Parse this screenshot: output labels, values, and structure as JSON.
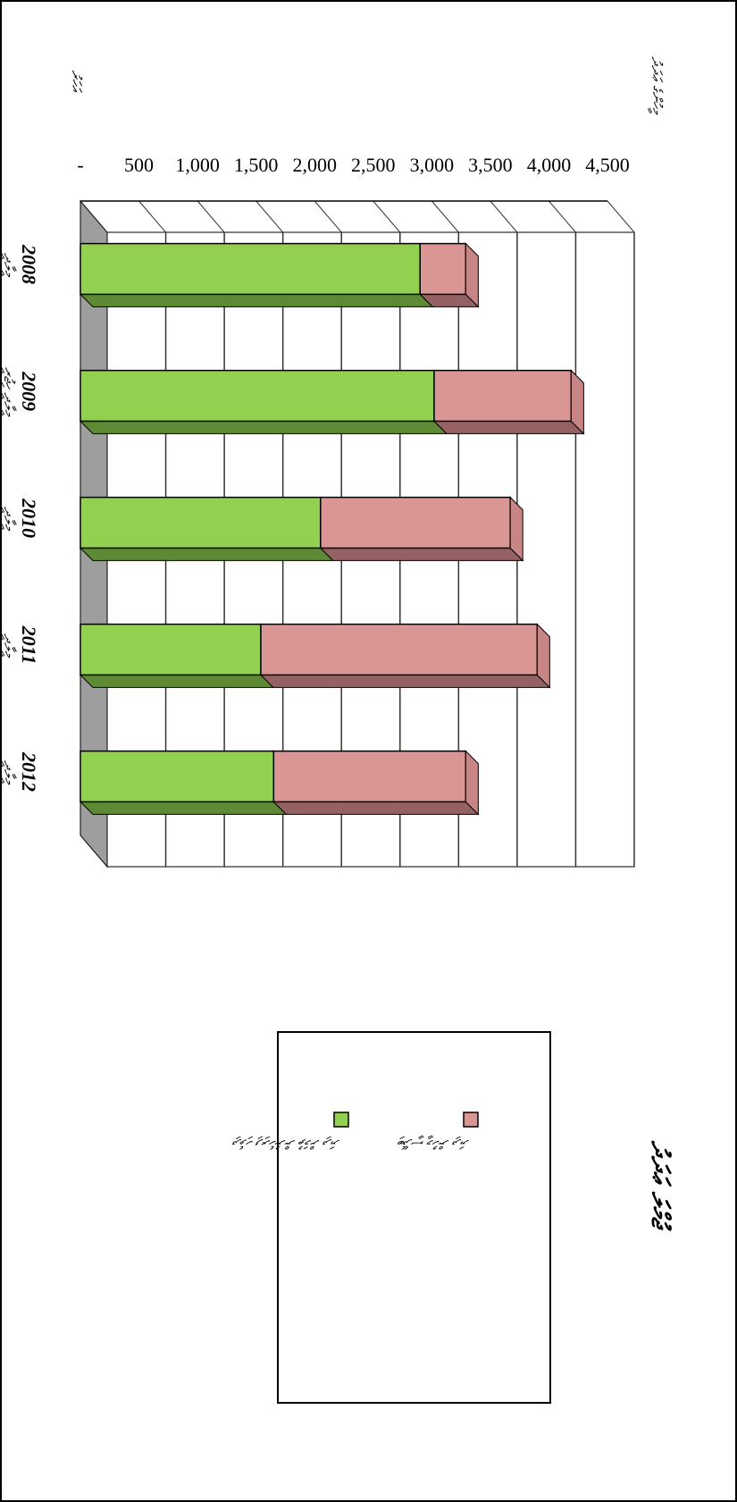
{
  "chart_data": {
    "type": "bar",
    "stacked": true,
    "orientation": "horizontal",
    "title": "ޖުމްލަ ޢަދަދު",
    "ylabel": "މީހުންގެ ޢަދަދު",
    "yunit": "އަހަރު",
    "categories": [
      "2008",
      "2009",
      "2010",
      "2011",
      "2012"
    ],
    "category_sublabels": [
      "މީލާދީ",
      "މީލާދީ ހިޖުރީ",
      "މީލާދީ",
      "މީލާދީ",
      "މީލާދީ"
    ],
    "xlim": [
      0,
      4500
    ],
    "ticks": [
      "-",
      "500",
      "1,000",
      "1,500",
      "2,000",
      "2,500",
      "3,000",
      "3,500",
      "4,000",
      "4,500"
    ],
    "series": [
      {
        "name": "ދިވެހި ފިރިހެނުން ތުމަށް ދިޔަ",
        "color": "#92d050",
        "values": [
          2900,
          3020,
          2050,
          1540,
          1650
        ]
      },
      {
        "name": "ބިދޭސީ މީހުން ދިޔަ",
        "color": "#da9694",
        "values": [
          390,
          1170,
          1620,
          2360,
          1640
        ]
      }
    ],
    "grid": true,
    "legend": "right"
  }
}
